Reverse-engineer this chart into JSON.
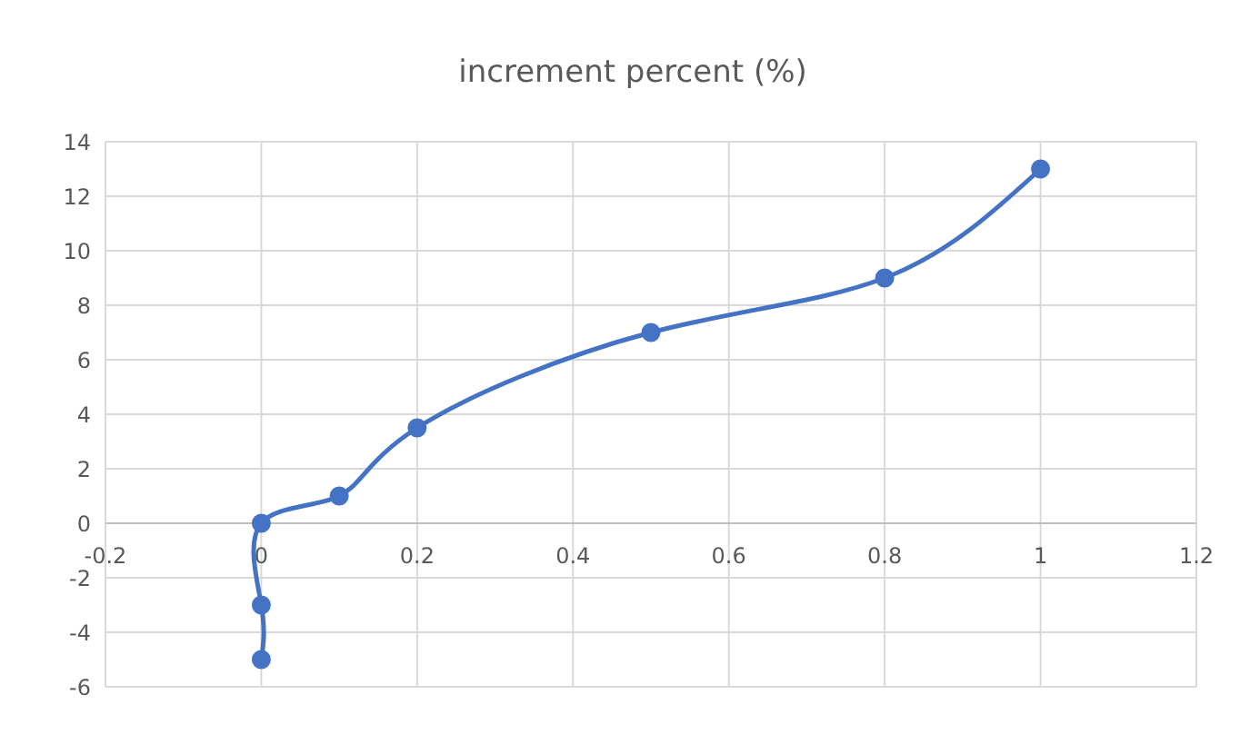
{
  "chart_data": {
    "type": "line",
    "title": "increment percent (%)",
    "x": [
      0,
      0,
      0,
      0.1,
      0.2,
      0.5,
      0.8,
      1
    ],
    "series": [
      {
        "color": "#4472c4",
        "values": [
          -5,
          -3,
          0,
          1,
          3.5,
          7,
          9,
          13
        ]
      }
    ],
    "xlim": [
      -0.2,
      1.2
    ],
    "xticks": [
      -0.2,
      0,
      0.2,
      0.4,
      0.6,
      0.8,
      1,
      1.2
    ],
    "ylim": [
      -6,
      14
    ],
    "yticks": [
      -6,
      -4,
      -2,
      0,
      2,
      4,
      6,
      8,
      10,
      12,
      14
    ],
    "grid": true,
    "marker": "circle",
    "legend": false
  }
}
